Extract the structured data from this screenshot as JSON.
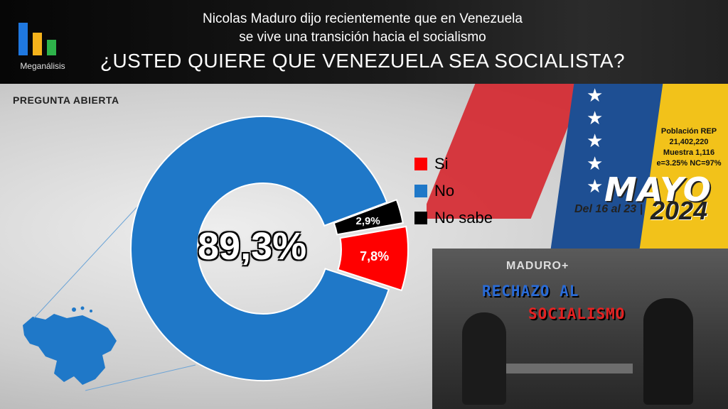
{
  "header": {
    "logo_text": "Meganálisis",
    "subtitle_line1": "Nicolas Maduro dijo recientemente que en Venezuela",
    "subtitle_line2": "se vive una transición hacia el socialismo",
    "question": "¿USTED QUIERE QUE VENEZUELA SEA SOCIALISTA?"
  },
  "open_question_label": "PREGUNTA  ABIERTA",
  "stats": {
    "population": "Población REP",
    "population_value": "21,402,220",
    "sample": "Muestra 1,116",
    "error": "e=3.25%  NC=97%"
  },
  "period": {
    "month": "MAYO",
    "dates": "Del 16 al 23 |",
    "year": "2024"
  },
  "photo": {
    "channel_tag": "MADURO+",
    "banner_line1": "RECHAZO AL",
    "banner_line2": "SOCIALISMO"
  },
  "colors": {
    "si": "#ff0000",
    "no": "#1f78c8",
    "no_sabe": "#000000",
    "logo_blue": "#1f78e0",
    "logo_yellow": "#f5b21b",
    "logo_green": "#2eb34a"
  },
  "chart_data": {
    "type": "pie",
    "donut": true,
    "categories": [
      "Si",
      "No",
      "No sabe"
    ],
    "values": [
      7.8,
      89.3,
      2.9
    ],
    "value_labels": [
      "7,8%",
      "89,3%",
      "2,9%"
    ],
    "legend_position": "right"
  }
}
